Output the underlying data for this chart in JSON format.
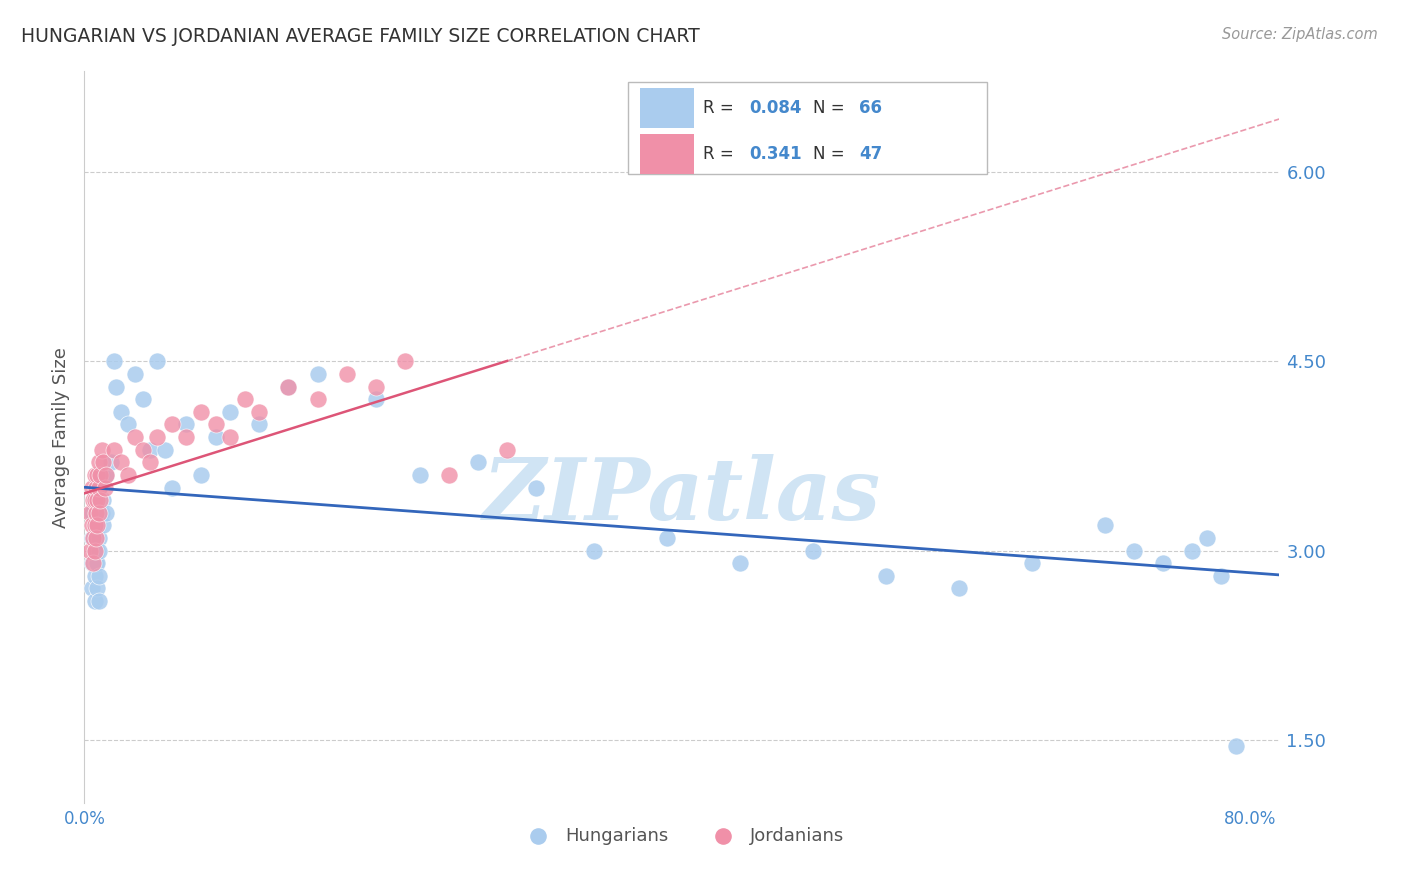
{
  "title": "HUNGARIAN VS JORDANIAN AVERAGE FAMILY SIZE CORRELATION CHART",
  "source": "Source: ZipAtlas.com",
  "ylabel": "Average Family Size",
  "xlim": [
    0.0,
    0.82
  ],
  "ylim": [
    1.0,
    6.8
  ],
  "yticks": [
    1.5,
    3.0,
    4.5,
    6.0
  ],
  "xticks": [
    0.0,
    0.8
  ],
  "xtick_labels": [
    "0.0%",
    "80.0%"
  ],
  "background_color": "#ffffff",
  "grid_color": "#cccccc",
  "hungarian_color": "#aaccee",
  "jordanian_color": "#f090a8",
  "hungarian_line_color": "#3366bb",
  "jordanian_line_color": "#dd5577",
  "tick_color": "#4488cc",
  "axis_label_color": "#555555",
  "watermark_color": "#d0e4f4",
  "hungarian_x": [
    0.005,
    0.005,
    0.005,
    0.005,
    0.007,
    0.007,
    0.007,
    0.007,
    0.007,
    0.008,
    0.008,
    0.008,
    0.008,
    0.009,
    0.009,
    0.009,
    0.009,
    0.009,
    0.01,
    0.01,
    0.01,
    0.01,
    0.01,
    0.01,
    0.012,
    0.012,
    0.013,
    0.013,
    0.015,
    0.015,
    0.018,
    0.02,
    0.022,
    0.025,
    0.03,
    0.035,
    0.04,
    0.045,
    0.05,
    0.055,
    0.06,
    0.07,
    0.08,
    0.09,
    0.1,
    0.12,
    0.14,
    0.16,
    0.2,
    0.23,
    0.27,
    0.31,
    0.35,
    0.4,
    0.45,
    0.5,
    0.55,
    0.6,
    0.65,
    0.7,
    0.72,
    0.74,
    0.76,
    0.77,
    0.78,
    0.79
  ],
  "hungarian_y": [
    3.3,
    3.1,
    2.9,
    2.7,
    3.4,
    3.2,
    3.0,
    2.8,
    2.6,
    3.5,
    3.3,
    3.1,
    2.9,
    3.4,
    3.2,
    3.0,
    2.9,
    2.7,
    3.5,
    3.3,
    3.1,
    3.0,
    2.8,
    2.6,
    3.6,
    3.3,
    3.4,
    3.2,
    3.6,
    3.3,
    3.7,
    4.5,
    4.3,
    4.1,
    4.0,
    4.4,
    4.2,
    3.8,
    4.5,
    3.8,
    3.5,
    4.0,
    3.6,
    3.9,
    4.1,
    4.0,
    4.3,
    4.4,
    4.2,
    3.6,
    3.7,
    3.5,
    3.0,
    3.1,
    2.9,
    3.0,
    2.8,
    2.7,
    2.9,
    3.2,
    3.0,
    2.9,
    3.0,
    3.1,
    2.8,
    1.45
  ],
  "jordanian_x": [
    0.004,
    0.004,
    0.005,
    0.005,
    0.006,
    0.006,
    0.006,
    0.007,
    0.007,
    0.007,
    0.007,
    0.008,
    0.008,
    0.008,
    0.009,
    0.009,
    0.009,
    0.01,
    0.01,
    0.01,
    0.011,
    0.011,
    0.012,
    0.013,
    0.014,
    0.015,
    0.02,
    0.025,
    0.03,
    0.035,
    0.04,
    0.045,
    0.05,
    0.06,
    0.07,
    0.08,
    0.09,
    0.1,
    0.11,
    0.12,
    0.14,
    0.16,
    0.18,
    0.2,
    0.22,
    0.25,
    0.29
  ],
  "jordanian_y": [
    3.3,
    3.0,
    3.5,
    3.2,
    3.4,
    3.1,
    2.9,
    3.6,
    3.4,
    3.2,
    3.0,
    3.5,
    3.3,
    3.1,
    3.6,
    3.4,
    3.2,
    3.7,
    3.5,
    3.3,
    3.6,
    3.4,
    3.8,
    3.7,
    3.5,
    3.6,
    3.8,
    3.7,
    3.6,
    3.9,
    3.8,
    3.7,
    3.9,
    4.0,
    3.9,
    4.1,
    4.0,
    3.9,
    4.2,
    4.1,
    4.3,
    4.2,
    4.4,
    4.3,
    4.5,
    3.6,
    3.8
  ],
  "hungarian_r": 0.084,
  "hungarian_n": 66,
  "jordanian_r": 0.341,
  "jordanian_n": 47
}
